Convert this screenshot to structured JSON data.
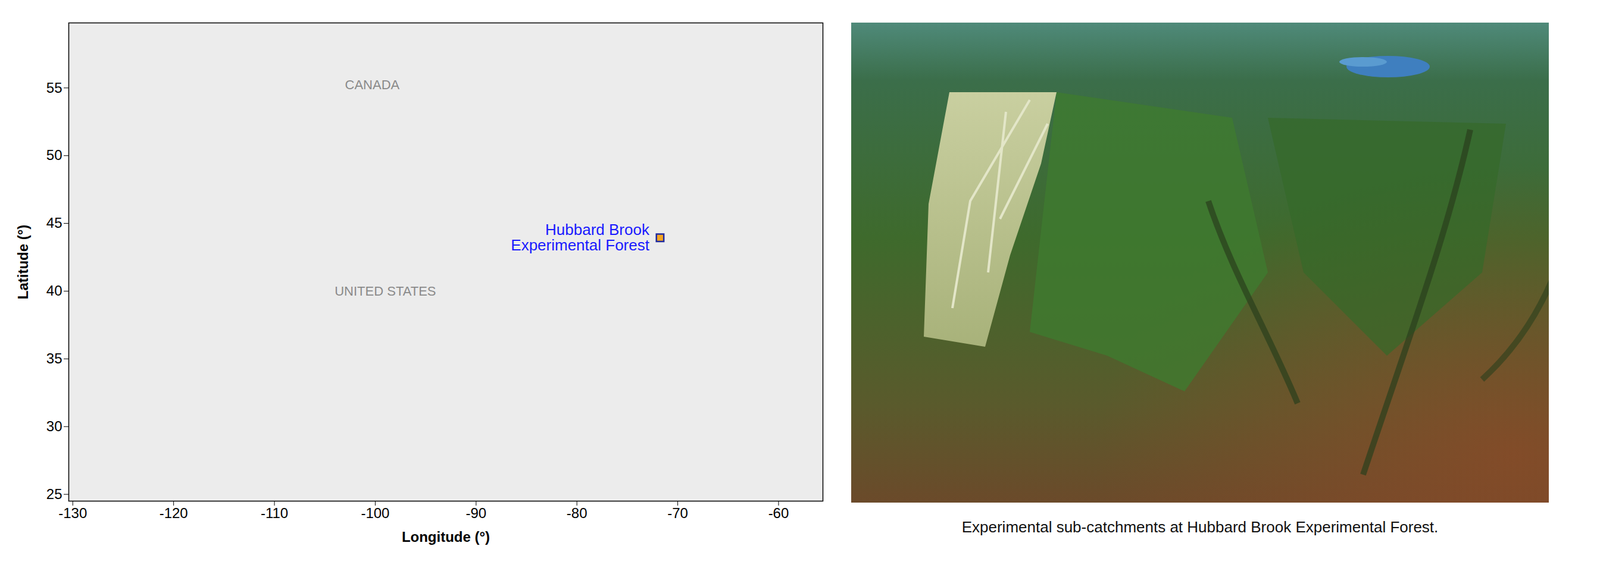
{
  "chart_data": {
    "type": "map",
    "xlabel": "Longitude (°)",
    "ylabel": "Latitude (°)",
    "xlim": [
      -130.4,
      -55.6
    ],
    "ylim": [
      24.5,
      59.8
    ],
    "xticks": [
      -130,
      -120,
      -110,
      -100,
      -90,
      -80,
      -70,
      -60
    ],
    "yticks": [
      25,
      30,
      35,
      40,
      45,
      50,
      55
    ],
    "series": [
      {
        "name": "Hubbard Brook\nExperimental Forest",
        "x": [
          -71.75
        ],
        "y": [
          43.94
        ],
        "color": "#f5a623",
        "marker": "square"
      }
    ],
    "annotations": [
      {
        "text": "CANADA",
        "x": -100.3,
        "y": 55.2
      },
      {
        "text": "UNITED STATES",
        "x": -99,
        "y": 40.0
      }
    ]
  },
  "photo": {
    "caption": "Experimental sub-catchments at Hubbard Brook Experimental Forest."
  }
}
